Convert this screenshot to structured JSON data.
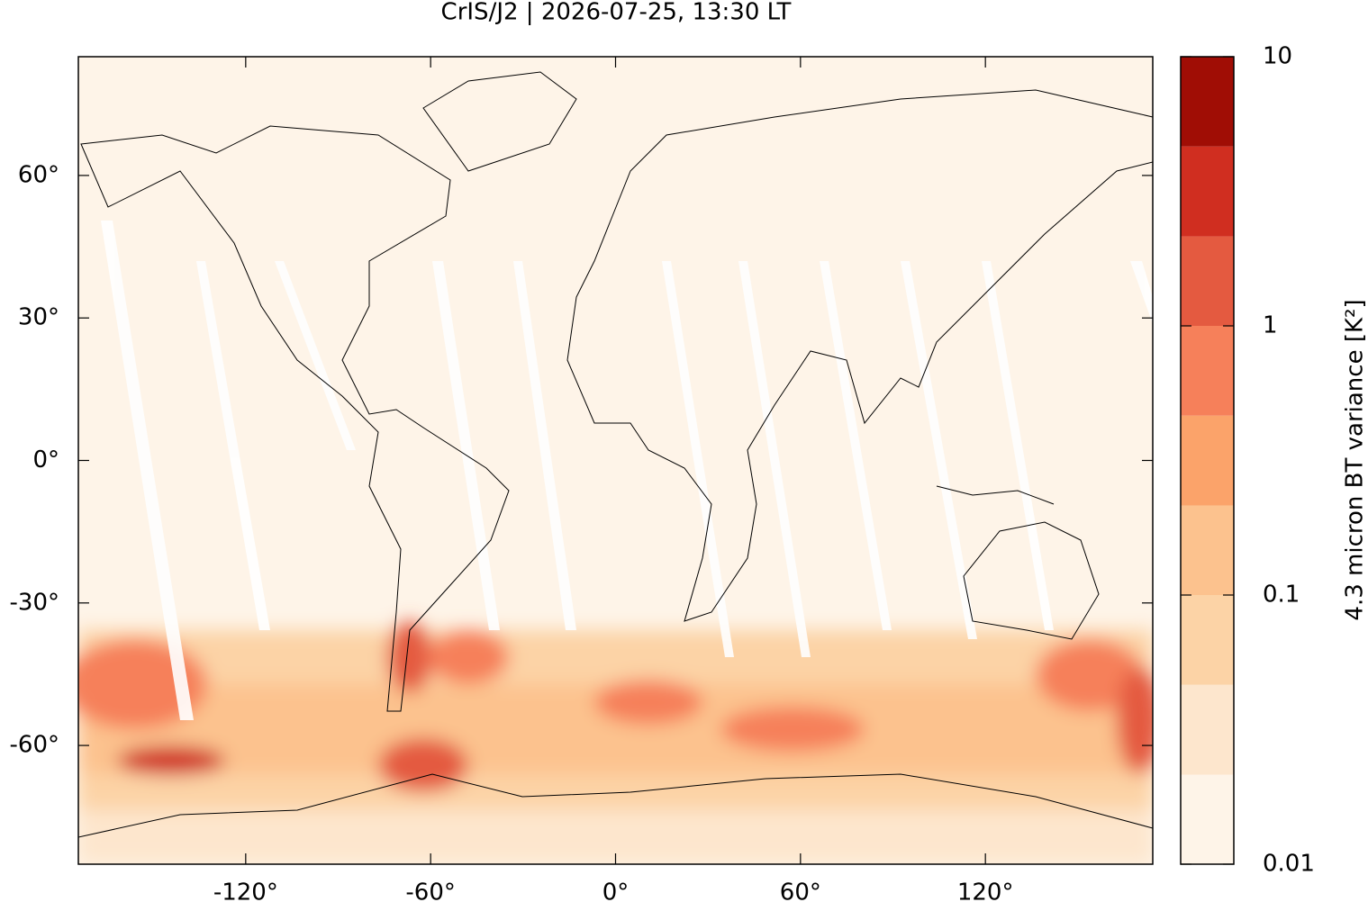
{
  "chart_data": {
    "type": "map",
    "title": "CrIS/J2 | 2026-07-25, 13:30 LT",
    "xlim": [
      -174.3,
      174.3
    ],
    "ylim": [
      -85,
      85
    ],
    "xticks": [
      {
        "value": -120,
        "label": "-120°"
      },
      {
        "value": -60,
        "label": "-60°"
      },
      {
        "value": 0,
        "label": "0°"
      },
      {
        "value": 60,
        "label": "60°"
      },
      {
        "value": 120,
        "label": "120°"
      }
    ],
    "yticks": [
      {
        "value": -60,
        "label": "-60°"
      },
      {
        "value": -30,
        "label": "-30°"
      },
      {
        "value": 0,
        "label": "0°"
      },
      {
        "value": 30,
        "label": "30°"
      },
      {
        "value": 60,
        "label": "60°"
      }
    ],
    "colorbar": {
      "label": "4.3 micron BT variance [K²]",
      "log": true,
      "lim": [
        0.01,
        10
      ],
      "ticks": [
        0.01,
        0.1,
        1,
        10
      ],
      "levels": [
        0.01,
        0.0215,
        0.0464,
        0.1,
        0.215,
        0.464,
        1,
        2.15,
        4.64,
        10
      ],
      "colors": [
        "#fef4e8",
        "#fde6cd",
        "#fcd3a6",
        "#fcc28e",
        "#fba36a",
        "#f6805a",
        "#e45a40",
        "#d02e20",
        "#a00d05"
      ]
    }
  }
}
